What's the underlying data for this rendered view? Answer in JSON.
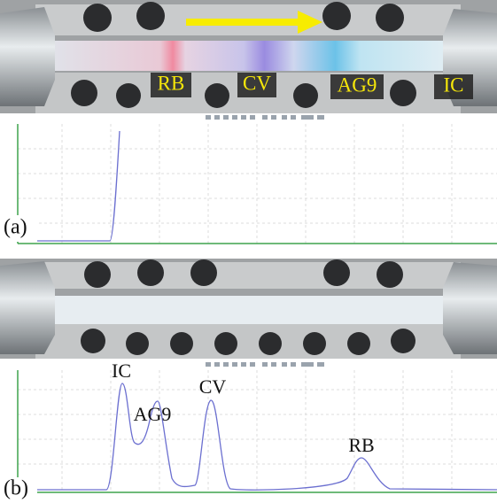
{
  "panel_a": {
    "label": "(a)",
    "photo_labels": [
      "RB",
      "CV",
      "AG9",
      "IC"
    ]
  },
  "panel_b": {
    "label": "(b)",
    "peak_labels": [
      "IC",
      "AG9",
      "CV",
      "RB"
    ]
  }
}
